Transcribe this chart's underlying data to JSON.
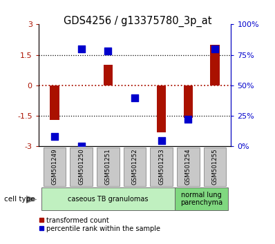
{
  "title": "GDS4256 / g13375780_3p_at",
  "samples": [
    "GSM501249",
    "GSM501250",
    "GSM501251",
    "GSM501252",
    "GSM501253",
    "GSM501254",
    "GSM501255"
  ],
  "red_values": [
    -1.7,
    0.0,
    1.0,
    0.0,
    -2.3,
    -1.6,
    2.0
  ],
  "blue_values": [
    8,
    0,
    80,
    78,
    40,
    5,
    22,
    80
  ],
  "blue_x": [
    0,
    1,
    1,
    2,
    3,
    4,
    5,
    6
  ],
  "ylim_left": [
    -3,
    3
  ],
  "ylim_right": [
    0,
    100
  ],
  "yticks_left": [
    -3,
    -1.5,
    0,
    1.5,
    3
  ],
  "yticks_right": [
    0,
    25,
    50,
    75,
    100
  ],
  "ytick_labels_left": [
    "-3",
    "-1.5",
    "0",
    "1.5",
    "3"
  ],
  "ytick_labels_right": [
    "0%",
    "25%",
    "50%",
    "75%",
    "100%"
  ],
  "hlines_black": [
    1.5,
    -1.5
  ],
  "hline_red": 0,
  "groups": [
    {
      "label": "caseous TB granulomas",
      "start": 0,
      "end": 4,
      "color": "#c0f0c0"
    },
    {
      "label": "normal lung\nparenchyma",
      "start": 5,
      "end": 6,
      "color": "#80d880"
    }
  ],
  "legend_red": "transformed count",
  "legend_blue": "percentile rank within the sample",
  "bar_color": "#aa1100",
  "dot_color": "#0000cc",
  "bar_width": 0.35,
  "dot_size": 55,
  "bg_color": "#ffffff",
  "label_gray": "#c8c8c8",
  "cell_type_label": "cell type"
}
